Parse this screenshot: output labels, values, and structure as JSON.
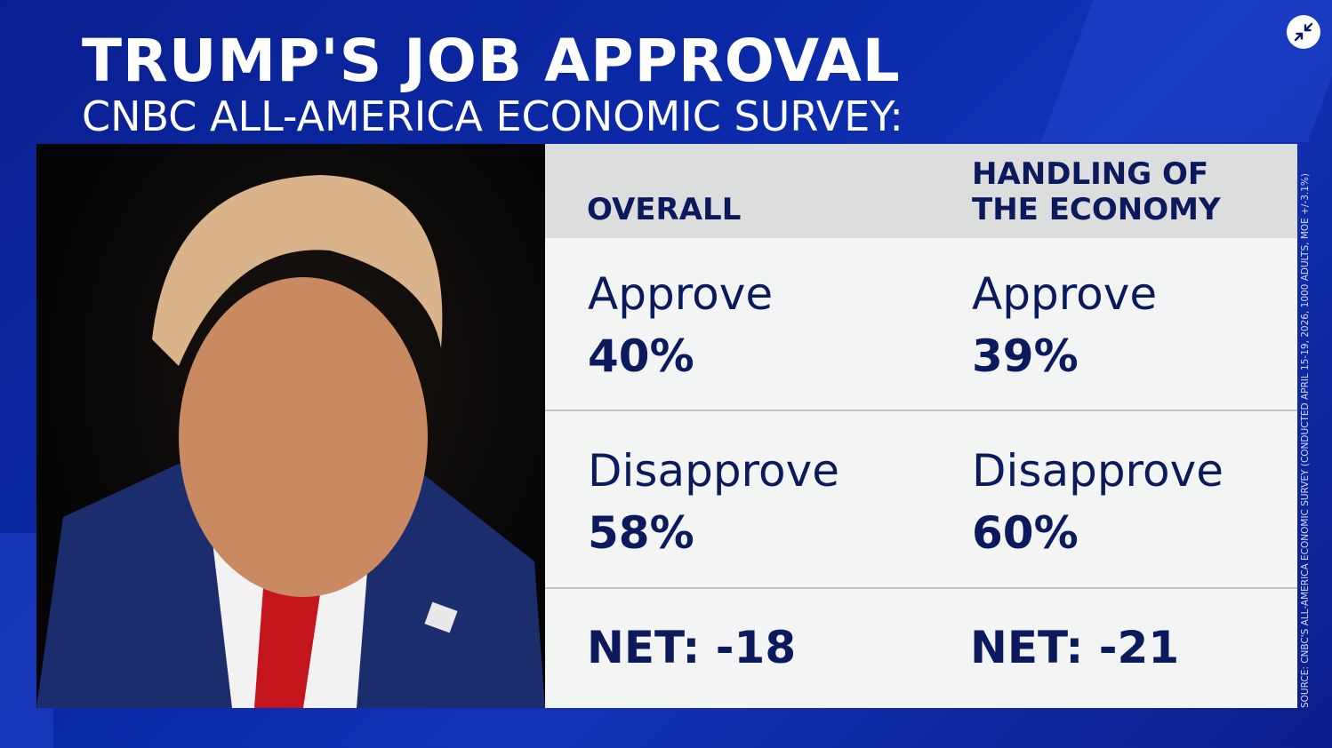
{
  "header": {
    "title": "TRUMP'S JOB APPROVAL",
    "subtitle": "CNBC ALL-AMERICA ECONOMIC SURVEY:"
  },
  "table": {
    "columns": [
      "OVERALL",
      "HANDLING OF THE ECONOMY"
    ],
    "rows": [
      {
        "label": "Approve",
        "values": [
          "40%",
          "39%"
        ]
      },
      {
        "label": "Disapprove",
        "values": [
          "58%",
          "60%"
        ]
      }
    ],
    "net": [
      "NET: -18",
      "NET: -21"
    ]
  },
  "source": "SOURCE: CNBC'S ALL-AMERICA ECONOMIC SURVEY (CONDUCTED APRIL 15-19, 2026, 1000 ADULTS, MOE +/-3.1%)",
  "controls": {
    "exit_fullscreen_icon": "collapse-arrows-icon"
  },
  "colors": {
    "background": "#0b2aa8",
    "text_dark": "#0b1a5c",
    "header_bg": "#dcdddd",
    "table_bg": "#f3f4f4"
  }
}
